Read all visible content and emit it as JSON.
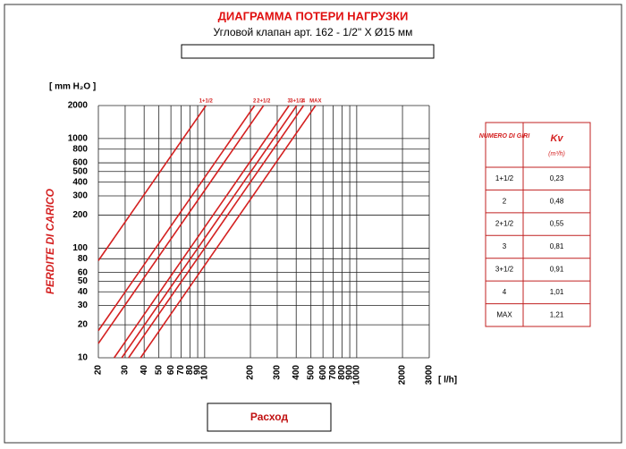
{
  "chart_data": {
    "type": "line",
    "title": "ДИАГРАММА ПОТЕРИ НАГРУЗКИ",
    "subtitle": "Угловой клапан арт. 162 - 1/2\" X Ø15 мм",
    "y_unit": "[ mm H₂O ]",
    "y_label": "PERDITE DI CARICO",
    "x_unit": "[ l/h]",
    "x_label": "Расход",
    "log_x": true,
    "log_y": true,
    "grid": true,
    "xlim": [
      20,
      3000
    ],
    "ylim": [
      10,
      2000
    ],
    "xticks": [
      20,
      30,
      40,
      50,
      60,
      70,
      80,
      90,
      100,
      200,
      300,
      400,
      500,
      600,
      700,
      800,
      900,
      1000,
      2000,
      3000
    ],
    "yticks": [
      10,
      20,
      30,
      40,
      50,
      60,
      80,
      100,
      200,
      300,
      400,
      500,
      600,
      800,
      1000,
      2000
    ],
    "series": [
      {
        "name": "1+1/2",
        "color": "#d42020",
        "x": [
          20,
          102
        ],
        "values": [
          77,
          2000
        ]
      },
      {
        "name": "2",
        "color": "#d42020",
        "x": [
          20,
          213
        ],
        "values": [
          17.7,
          2000
        ]
      },
      {
        "name": "2+1/2",
        "color": "#d42020",
        "x": [
          20,
          244
        ],
        "values": [
          13.5,
          2000
        ]
      },
      {
        "name": "3",
        "color": "#d42020",
        "x": [
          25.4,
          359
        ],
        "values": [
          10,
          2000
        ]
      },
      {
        "name": "3+1/2",
        "color": "#d42020",
        "x": [
          28.5,
          403
        ],
        "values": [
          10,
          2000
        ]
      },
      {
        "name": "4",
        "color": "#d42020",
        "x": [
          31.6,
          447
        ],
        "values": [
          10,
          2000
        ]
      },
      {
        "name": "MAX",
        "color": "#d42020",
        "x": [
          37.9,
          536
        ],
        "values": [
          10,
          2000
        ]
      }
    ]
  },
  "kv_table": {
    "header": [
      "NUMERO DI GIRI",
      "Kv",
      "(m³/h)"
    ],
    "rows": [
      [
        "1+1/2",
        "0,23"
      ],
      [
        "2",
        "0,48"
      ],
      [
        "2+1/2",
        "0,55"
      ],
      [
        "3",
        "0,81"
      ],
      [
        "3+1/2",
        "0,91"
      ],
      [
        "4",
        "1,01"
      ],
      [
        "MAX",
        "1,21"
      ]
    ]
  }
}
